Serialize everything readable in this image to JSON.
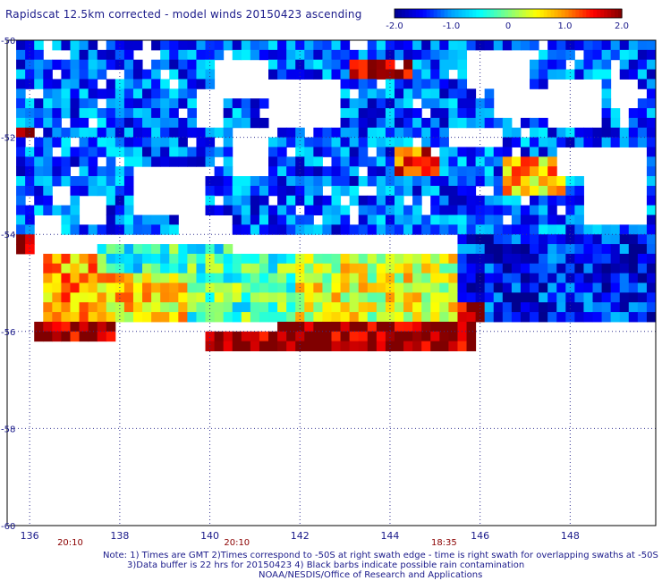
{
  "chart_data": {
    "type": "heatmap",
    "title": "Rapidscat 12.5km corrected - model winds 20150423 ascending",
    "xlabel": "",
    "ylabel": "",
    "xlim": [
      135.5,
      149.9
    ],
    "ylim": [
      -60,
      -50
    ],
    "x_ticks": [
      136,
      138,
      140,
      142,
      144,
      146,
      148
    ],
    "y_ticks": [
      -50,
      -52,
      -54,
      -56,
      -58,
      -60
    ],
    "grid": true,
    "colorbar": {
      "min": -2.0,
      "max": 2.0,
      "ticks": [
        "-2.0",
        "-1.0",
        "0",
        "1.0",
        "2.0"
      ],
      "colormap": [
        "#00008f",
        "#0000ff",
        "#00a0ff",
        "#00ffff",
        "#80ff80",
        "#ffff00",
        "#ff9000",
        "#ff0000",
        "#800000"
      ]
    },
    "time_labels": [
      {
        "text": "20:10",
        "lon": 136.9
      },
      {
        "text": "20:10",
        "lon": 140.6
      },
      {
        "text": "18:35",
        "lon": 145.2
      }
    ],
    "cell_deg": 0.2,
    "regions": [
      {
        "lon": [
          135.7,
          149.8
        ],
        "lat": [
          -54.0,
          -50.0
        ],
        "level": -1.2
      },
      {
        "lon": [
          137.5,
          140.5
        ],
        "lat": [
          -55.5,
          -54.2
        ],
        "level": -0.4
      },
      {
        "lon": [
          136.2,
          137.5
        ],
        "lat": [
          -56.0,
          -54.5
        ],
        "level": 0.9
      },
      {
        "lon": [
          137.5,
          139.5
        ],
        "lat": [
          -55.8,
          -54.8
        ],
        "level": 0.6
      },
      {
        "lon": [
          139.5,
          141.8
        ],
        "lat": [
          -55.8,
          -54.5
        ],
        "level": -0.2
      },
      {
        "lon": [
          141.8,
          145.5
        ],
        "lat": [
          -56.0,
          -54.5
        ],
        "level": 0.4
      },
      {
        "lon": [
          145.5,
          149.8
        ],
        "lat": [
          -55.8,
          -54.0
        ],
        "level": -1.5
      },
      {
        "lon": [
          143.0,
          144.5
        ],
        "lat": [
          -50.9,
          -50.4
        ],
        "level": 1.9
      },
      {
        "lon": [
          144.0,
          145.0
        ],
        "lat": [
          -52.8,
          -52.2
        ],
        "level": 1.3
      },
      {
        "lon": [
          146.5,
          147.8
        ],
        "lat": [
          -53.2,
          -52.5
        ],
        "level": 0.8
      },
      {
        "lon": [
          136.0,
          137.8
        ],
        "lat": [
          -56.2,
          -55.8
        ],
        "level": 1.9
      },
      {
        "lon": [
          139.8,
          141.5
        ],
        "lat": [
          -56.4,
          -56.0
        ],
        "level": 2.0
      },
      {
        "lon": [
          141.5,
          145.8
        ],
        "lat": [
          -56.4,
          -55.8
        ],
        "level": 2.0
      },
      {
        "lon": [
          145.5,
          146.0
        ],
        "lat": [
          -55.8,
          -55.4
        ],
        "level": 1.6
      },
      {
        "lon": [
          135.7,
          136.0
        ],
        "lat": [
          -54.4,
          -54.0
        ],
        "level": 2.0
      },
      {
        "lon": [
          135.7,
          136.1
        ],
        "lat": [
          -52.1,
          -51.8
        ],
        "level": 1.8
      }
    ],
    "missing_patches": [
      {
        "lon": [
          140.0,
          141.2
        ],
        "lat": [
          -51.2,
          -50.5
        ]
      },
      {
        "lon": [
          141.3,
          142.8
        ],
        "lat": [
          -51.9,
          -50.8
        ]
      },
      {
        "lon": [
          142.5,
          142.9
        ],
        "lat": [
          -51.3,
          -50.8
        ]
      },
      {
        "lon": [
          145.7,
          147.0
        ],
        "lat": [
          -51.1,
          -50.3
        ]
      },
      {
        "lon": [
          146.3,
          147.5
        ],
        "lat": [
          -51.6,
          -51.1
        ]
      },
      {
        "lon": [
          145.2,
          146.4
        ],
        "lat": [
          -52.2,
          -51.9
        ]
      },
      {
        "lon": [
          147.4,
          148.6
        ],
        "lat": [
          -51.8,
          -50.9
        ]
      },
      {
        "lon": [
          148.9,
          149.4
        ],
        "lat": [
          -51.4,
          -50.8
        ]
      },
      {
        "lon": [
          136.3,
          136.8
        ],
        "lat": [
          -50.5,
          -50.2
        ]
      },
      {
        "lon": [
          138.2,
          138.8
        ],
        "lat": [
          -50.5,
          -50.2
        ]
      },
      {
        "lon": [
          146.7,
          147.2
        ],
        "lat": [
          -50.5,
          -50.2
        ]
      },
      {
        "lon": [
          139.6,
          140.2
        ],
        "lat": [
          -51.9,
          -51.1
        ]
      },
      {
        "lon": [
          140.4,
          141.2
        ],
        "lat": [
          -52.8,
          -51.8
        ]
      },
      {
        "lon": [
          138.2,
          139.8
        ],
        "lat": [
          -53.6,
          -52.6
        ]
      },
      {
        "lon": [
          137.0,
          137.6
        ],
        "lat": [
          -53.8,
          -53.2
        ]
      },
      {
        "lon": [
          136.4,
          136.8
        ],
        "lat": [
          -53.4,
          -53.0
        ]
      },
      {
        "lon": [
          148.2,
          149.7
        ],
        "lat": [
          -53.8,
          -52.3
        ]
      },
      {
        "lon": [
          147.6,
          148.2
        ],
        "lat": [
          -52.9,
          -52.3
        ]
      },
      {
        "lon": [
          139.2,
          140.4
        ],
        "lat": [
          -54.0,
          -53.6
        ]
      },
      {
        "lon": [
          136.0,
          136.6
        ],
        "lat": [
          -54.0,
          -53.6
        ]
      }
    ],
    "notes": [
      "Note: 1) Times are GMT 2)Times correspond to -50S at right swath edge - time is right swath for overlapping swaths at -50S",
      "3)Data buffer is 22 hrs for 20150423 4) Black barbs indicate possible rain contamination",
      "NOAA/NESDIS/Office of Research and Applications"
    ]
  }
}
